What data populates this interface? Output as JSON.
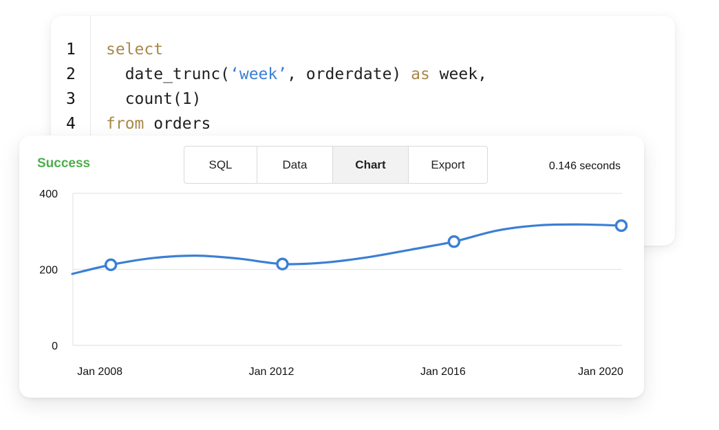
{
  "editor": {
    "lines": [
      {
        "number": "1",
        "parts": [
          {
            "text": "select",
            "kind": "keyword"
          }
        ]
      },
      {
        "number": "2",
        "parts": [
          {
            "text": "  date_trunc(",
            "kind": "plain"
          },
          {
            "text": "‘week’",
            "kind": "string"
          },
          {
            "text": ", orderdate) ",
            "kind": "plain"
          },
          {
            "text": "as",
            "kind": "keyword"
          },
          {
            "text": " week,",
            "kind": "plain"
          }
        ]
      },
      {
        "number": "3",
        "parts": [
          {
            "text": "  count(1)",
            "kind": "plain"
          }
        ]
      },
      {
        "number": "4",
        "parts": [
          {
            "text": "from",
            "kind": "keyword"
          },
          {
            "text": " orders",
            "kind": "plain"
          }
        ]
      }
    ]
  },
  "result": {
    "status": "Success",
    "tabs": [
      {
        "label": "SQL",
        "active": false
      },
      {
        "label": "Data",
        "active": false
      },
      {
        "label": "Chart",
        "active": true
      },
      {
        "label": "Export",
        "active": false
      }
    ],
    "timing": "0.146 seconds"
  },
  "colors": {
    "keyword": "#a8884a",
    "string": "#3b7fd4",
    "success": "#4cae4c",
    "line": "#3b7fd4",
    "grid": "#e4e4e4"
  },
  "chart_data": {
    "type": "line",
    "title": "",
    "xlabel": "",
    "ylabel": "",
    "ylim": [
      0,
      400
    ],
    "y_ticks": [
      "0",
      "200",
      "400"
    ],
    "x_tick_labels": [
      "Jan 2008",
      "Jan 2012",
      "Jan 2016",
      "Jan 2020"
    ],
    "grid": true,
    "series": [
      {
        "curve": [
          {
            "x": 2007.1,
            "y": 188
          },
          {
            "x": 2008.0,
            "y": 212
          },
          {
            "x": 2009.0,
            "y": 230
          },
          {
            "x": 2010.0,
            "y": 236
          },
          {
            "x": 2011.0,
            "y": 228
          },
          {
            "x": 2012.0,
            "y": 214
          },
          {
            "x": 2013.0,
            "y": 218
          },
          {
            "x": 2014.0,
            "y": 232
          },
          {
            "x": 2015.0,
            "y": 252
          },
          {
            "x": 2016.0,
            "y": 273
          },
          {
            "x": 2017.0,
            "y": 302
          },
          {
            "x": 2018.0,
            "y": 316
          },
          {
            "x": 2019.0,
            "y": 318
          },
          {
            "x": 2019.9,
            "y": 315
          }
        ],
        "points": [
          {
            "x": 2008.0,
            "y": 212
          },
          {
            "x": 2012.0,
            "y": 214
          },
          {
            "x": 2016.0,
            "y": 273
          },
          {
            "x": 2019.9,
            "y": 315
          }
        ]
      }
    ]
  }
}
